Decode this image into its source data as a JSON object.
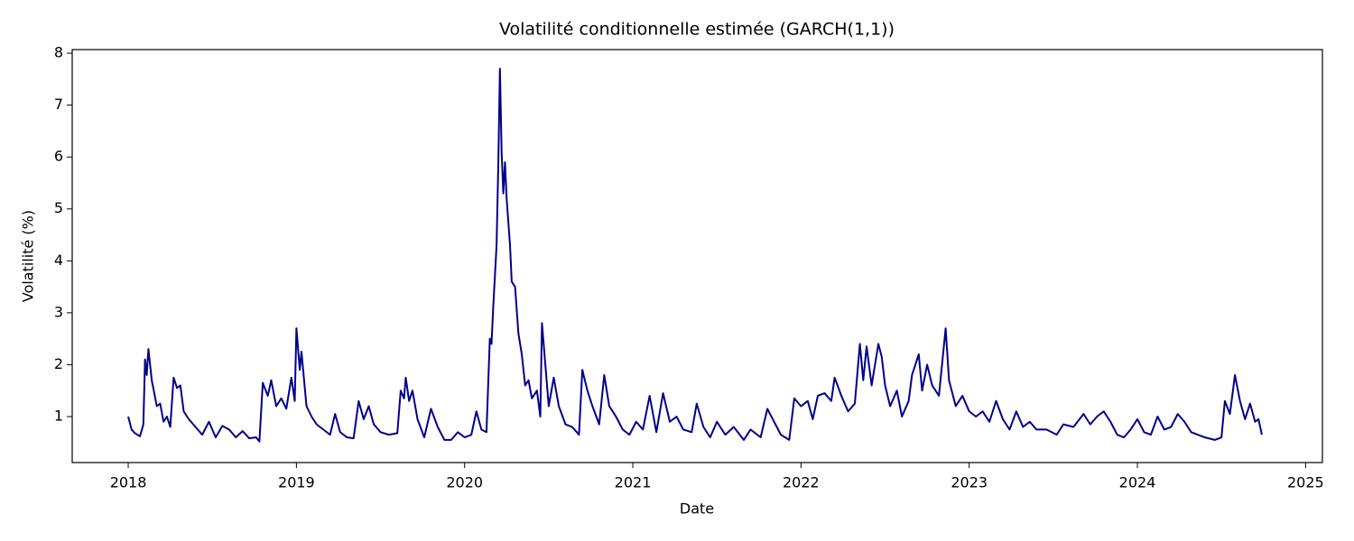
{
  "chart_data": {
    "type": "line",
    "title": "Volatilité conditionnelle estimée (GARCH(1,1))",
    "x_label": "Date",
    "y_label": "Volatilité (%)",
    "color": "#00008b",
    "x": [
      2018.0,
      2018.02,
      2018.04,
      2018.07,
      2018.09,
      2018.1,
      2018.11,
      2018.12,
      2018.14,
      2018.17,
      2018.19,
      2018.21,
      2018.23,
      2018.25,
      2018.27,
      2018.29,
      2018.31,
      2018.33,
      2018.36,
      2018.4,
      2018.44,
      2018.48,
      2018.52,
      2018.56,
      2018.6,
      2018.64,
      2018.68,
      2018.72,
      2018.76,
      2018.78,
      2018.8,
      2018.83,
      2018.85,
      2018.88,
      2018.91,
      2018.94,
      2018.97,
      2018.99,
      2019.0,
      2019.02,
      2019.03,
      2019.06,
      2019.09,
      2019.12,
      2019.16,
      2019.2,
      2019.23,
      2019.26,
      2019.3,
      2019.34,
      2019.37,
      2019.4,
      2019.43,
      2019.46,
      2019.5,
      2019.55,
      2019.6,
      2019.62,
      2019.64,
      2019.65,
      2019.67,
      2019.69,
      2019.72,
      2019.76,
      2019.8,
      2019.84,
      2019.88,
      2019.92,
      2019.96,
      2020.0,
      2020.04,
      2020.07,
      2020.1,
      2020.13,
      2020.15,
      2020.16,
      2020.17,
      2020.19,
      2020.2,
      2020.21,
      2020.22,
      2020.23,
      2020.24,
      2020.25,
      2020.27,
      2020.28,
      2020.3,
      2020.32,
      2020.34,
      2020.36,
      2020.38,
      2020.4,
      2020.43,
      2020.45,
      2020.46,
      2020.48,
      2020.5,
      2020.53,
      2020.56,
      2020.6,
      2020.64,
      2020.68,
      2020.7,
      2020.73,
      2020.76,
      2020.8,
      2020.83,
      2020.86,
      2020.9,
      2020.94,
      2020.98,
      2021.02,
      2021.06,
      2021.1,
      2021.14,
      2021.18,
      2021.22,
      2021.26,
      2021.3,
      2021.35,
      2021.38,
      2021.42,
      2021.46,
      2021.5,
      2021.55,
      2021.6,
      2021.66,
      2021.7,
      2021.76,
      2021.8,
      2021.84,
      2021.88,
      2021.93,
      2021.96,
      2022.0,
      2022.04,
      2022.07,
      2022.1,
      2022.14,
      2022.18,
      2022.2,
      2022.24,
      2022.28,
      2022.32,
      2022.35,
      2022.37,
      2022.39,
      2022.42,
      2022.46,
      2022.48,
      2022.5,
      2022.53,
      2022.57,
      2022.6,
      2022.64,
      2022.66,
      2022.7,
      2022.72,
      2022.75,
      2022.78,
      2022.82,
      2022.86,
      2022.88,
      2022.92,
      2022.96,
      2023.0,
      2023.04,
      2023.08,
      2023.12,
      2023.16,
      2023.2,
      2023.24,
      2023.28,
      2023.32,
      2023.36,
      2023.4,
      2023.46,
      2023.52,
      2023.56,
      2023.62,
      2023.68,
      2023.72,
      2023.76,
      2023.8,
      2023.84,
      2023.88,
      2023.92,
      2023.96,
      2024.0,
      2024.04,
      2024.08,
      2024.12,
      2024.16,
      2024.2,
      2024.24,
      2024.28,
      2024.32,
      2024.36,
      2024.4,
      2024.46,
      2024.5,
      2024.52,
      2024.55,
      2024.58,
      2024.61,
      2024.64,
      2024.67,
      2024.7,
      2024.72,
      2024.74
    ],
    "values": [
      1.0,
      0.75,
      0.68,
      0.62,
      0.85,
      2.1,
      1.8,
      2.3,
      1.7,
      1.2,
      1.25,
      0.9,
      1.0,
      0.8,
      1.75,
      1.55,
      1.6,
      1.1,
      0.95,
      0.8,
      0.65,
      0.9,
      0.6,
      0.82,
      0.75,
      0.6,
      0.72,
      0.58,
      0.6,
      0.52,
      1.65,
      1.4,
      1.7,
      1.2,
      1.35,
      1.15,
      1.75,
      1.3,
      2.7,
      1.9,
      2.25,
      1.2,
      1.0,
      0.85,
      0.75,
      0.65,
      1.05,
      0.7,
      0.6,
      0.58,
      1.3,
      0.95,
      1.2,
      0.85,
      0.7,
      0.65,
      0.68,
      1.5,
      1.35,
      1.75,
      1.3,
      1.5,
      0.95,
      0.6,
      1.15,
      0.8,
      0.55,
      0.55,
      0.7,
      0.6,
      0.65,
      1.1,
      0.75,
      0.7,
      2.5,
      2.4,
      3.1,
      4.3,
      5.8,
      7.7,
      6.1,
      5.3,
      5.9,
      5.2,
      4.3,
      3.6,
      3.5,
      2.6,
      2.2,
      1.6,
      1.7,
      1.35,
      1.5,
      1.0,
      2.8,
      2.0,
      1.2,
      1.75,
      1.2,
      0.85,
      0.8,
      0.65,
      1.9,
      1.5,
      1.2,
      0.85,
      1.8,
      1.2,
      1.0,
      0.75,
      0.65,
      0.9,
      0.75,
      1.4,
      0.7,
      1.45,
      0.9,
      1.0,
      0.75,
      0.7,
      1.25,
      0.8,
      0.6,
      0.9,
      0.65,
      0.8,
      0.55,
      0.75,
      0.6,
      1.15,
      0.9,
      0.65,
      0.55,
      1.35,
      1.2,
      1.3,
      0.95,
      1.4,
      1.45,
      1.3,
      1.75,
      1.4,
      1.1,
      1.25,
      2.4,
      1.7,
      2.35,
      1.6,
      2.4,
      2.15,
      1.6,
      1.2,
      1.5,
      1.0,
      1.3,
      1.8,
      2.2,
      1.5,
      2.0,
      1.6,
      1.4,
      2.7,
      1.7,
      1.2,
      1.4,
      1.1,
      1.0,
      1.1,
      0.9,
      1.3,
      0.95,
      0.75,
      1.1,
      0.8,
      0.9,
      0.75,
      0.75,
      0.65,
      0.85,
      0.8,
      1.05,
      0.85,
      1.0,
      1.1,
      0.9,
      0.65,
      0.6,
      0.75,
      0.95,
      0.7,
      0.65,
      1.0,
      0.75,
      0.8,
      1.05,
      0.9,
      0.7,
      0.65,
      0.6,
      0.55,
      0.6,
      1.3,
      1.05,
      1.8,
      1.3,
      0.95,
      1.25,
      0.9,
      0.95,
      0.65
    ],
    "xlim": [
      2017.667,
      2025.1
    ],
    "ylim": [
      0.114,
      8.07
    ],
    "xticks": [
      2018,
      2019,
      2020,
      2021,
      2022,
      2023,
      2024,
      2025
    ],
    "yticks": [
      1,
      2,
      3,
      4,
      5,
      6,
      7,
      8
    ]
  }
}
